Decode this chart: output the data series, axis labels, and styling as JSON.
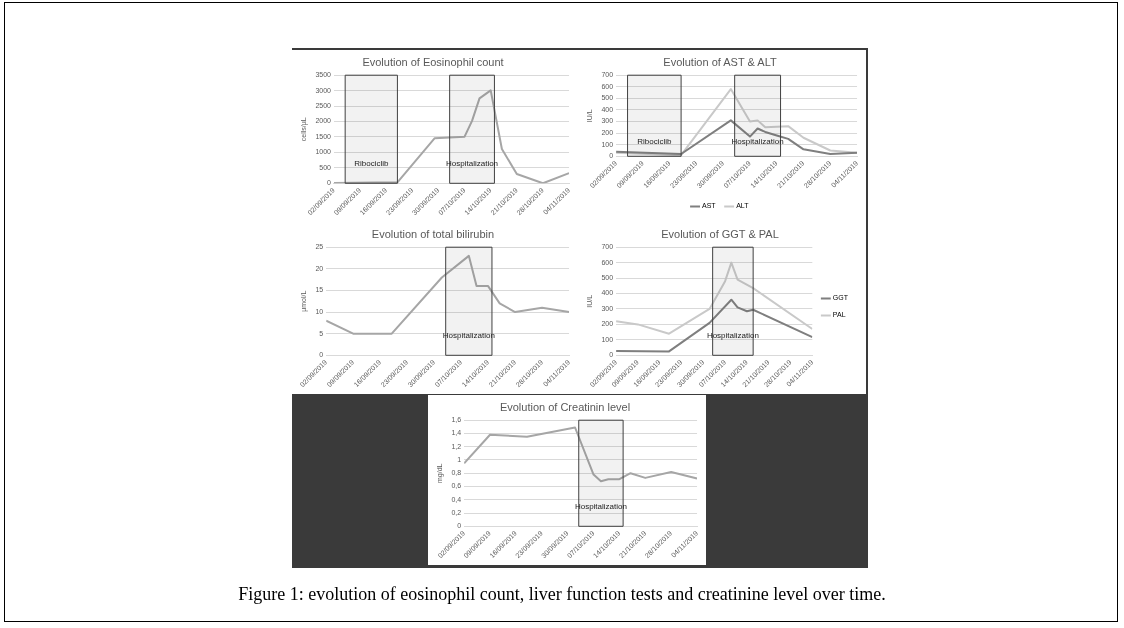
{
  "chart_data": [
    {
      "type": "line",
      "title": "Evolution of Eosinophil count",
      "ylabel": "cells/µL",
      "marker": "none",
      "grid": "y",
      "legend": false,
      "xlim": [
        "2019-09-02",
        "2019-11-04"
      ],
      "xticks": [
        {
          "value": "2019-09-02",
          "label": "02/09/2019"
        },
        {
          "value": "2019-09-09",
          "label": "09/09/2019"
        },
        {
          "value": "2019-09-16",
          "label": "16/09/2019"
        },
        {
          "value": "2019-09-23",
          "label": "23/09/2019"
        },
        {
          "value": "2019-09-30",
          "label": "30/09/2019"
        },
        {
          "value": "2019-10-07",
          "label": "07/10/2019"
        },
        {
          "value": "2019-10-14",
          "label": "14/10/2019"
        },
        {
          "value": "2019-10-21",
          "label": "21/10/2019"
        },
        {
          "value": "2019-10-28",
          "label": "28/10/2019"
        },
        {
          "value": "2019-11-04",
          "label": "04/11/2019"
        }
      ],
      "ylim": [
        0,
        3500
      ],
      "yticks": [
        0,
        500,
        1000,
        1500,
        2000,
        2500,
        3000,
        3500
      ],
      "bands": [
        {
          "axis": "x",
          "from": "2019-09-05",
          "to": "2019-09-19",
          "label": "Ribociclib",
          "color": "#404040"
        },
        {
          "axis": "x",
          "from": "2019-10-03",
          "to": "2019-10-15",
          "label": "Hospitalization",
          "color": "#404040"
        }
      ],
      "series": [
        {
          "color": "#a6a6a6",
          "x": [
            "2019-09-02",
            "2019-09-19",
            "2019-09-29",
            "2019-10-03",
            "2019-10-07",
            "2019-10-09",
            "2019-10-11",
            "2019-10-14",
            "2019-10-17",
            "2019-10-21",
            "2019-10-28",
            "2019-11-04"
          ],
          "values": [
            10,
            30,
            1460,
            1480,
            1510,
            2020,
            2750,
            3010,
            1110,
            300,
            0,
            330
          ]
        }
      ]
    },
    {
      "type": "line",
      "title": "Evolution of AST & ALT",
      "ylabel": "IU/L",
      "marker": "none",
      "grid": "y",
      "legend": "bottom",
      "xlim": [
        "2019-09-02",
        "2019-11-04"
      ],
      "xticks": [
        {
          "value": "2019-09-02",
          "label": "02/09/2019"
        },
        {
          "value": "2019-09-09",
          "label": "09/09/2019"
        },
        {
          "value": "2019-09-16",
          "label": "16/09/2019"
        },
        {
          "value": "2019-09-23",
          "label": "23/09/2019"
        },
        {
          "value": "2019-09-30",
          "label": "30/09/2019"
        },
        {
          "value": "2019-10-07",
          "label": "07/10/2019"
        },
        {
          "value": "2019-10-14",
          "label": "14/10/2019"
        },
        {
          "value": "2019-10-21",
          "label": "21/10/2019"
        },
        {
          "value": "2019-10-28",
          "label": "28/10/2019"
        },
        {
          "value": "2019-11-04",
          "label": "04/11/2019"
        }
      ],
      "ylim": [
        0,
        700
      ],
      "yticks": [
        0,
        100,
        200,
        300,
        400,
        500,
        600,
        700
      ],
      "bands": [
        {
          "axis": "x",
          "from": "2019-09-05",
          "to": "2019-09-19",
          "label": "Ribociclib",
          "color": "#404040"
        },
        {
          "axis": "x",
          "from": "2019-10-03",
          "to": "2019-10-15",
          "label": "Hospitalization",
          "color": "#404040"
        }
      ],
      "series": [
        {
          "name": "AST",
          "color": "#7f7f7f",
          "x": [
            "2019-09-02",
            "2019-09-19",
            "2019-10-02",
            "2019-10-07",
            "2019-10-09",
            "2019-10-11",
            "2019-10-14",
            "2019-10-17",
            "2019-10-21",
            "2019-10-28",
            "2019-11-04"
          ],
          "values": [
            40,
            20,
            310,
            170,
            240,
            210,
            180,
            150,
            60,
            20,
            30
          ]
        },
        {
          "name": "ALT",
          "color": "#c9c9c9",
          "x": [
            "2019-09-02",
            "2019-09-19",
            "2019-10-02",
            "2019-10-07",
            "2019-10-09",
            "2019-10-11",
            "2019-10-17",
            "2019-10-21",
            "2019-10-28",
            "2019-11-04"
          ],
          "values": [
            30,
            10,
            580,
            300,
            310,
            250,
            260,
            160,
            50,
            30
          ]
        }
      ]
    },
    {
      "type": "line",
      "title": "Evolution of total bilirubin",
      "ylabel": "µmol/L",
      "marker": "none",
      "grid": "y",
      "legend": false,
      "xlim": [
        "2019-09-02",
        "2019-11-04"
      ],
      "xticks": [
        {
          "value": "2019-09-02",
          "label": "02/09/2019"
        },
        {
          "value": "2019-09-09",
          "label": "09/09/2019"
        },
        {
          "value": "2019-09-16",
          "label": "16/09/2019"
        },
        {
          "value": "2019-09-23",
          "label": "23/09/2019"
        },
        {
          "value": "2019-09-30",
          "label": "30/09/2019"
        },
        {
          "value": "2019-10-07",
          "label": "07/10/2019"
        },
        {
          "value": "2019-10-14",
          "label": "14/10/2019"
        },
        {
          "value": "2019-10-21",
          "label": "21/10/2019"
        },
        {
          "value": "2019-10-28",
          "label": "28/10/2019"
        },
        {
          "value": "2019-11-04",
          "label": "04/11/2019"
        }
      ],
      "ylim": [
        0,
        25
      ],
      "yticks": [
        0,
        5,
        10,
        15,
        20,
        25
      ],
      "bands": [
        {
          "axis": "x",
          "from": "2019-10-03",
          "to": "2019-10-15",
          "label": "Hospitalization",
          "color": "#404040"
        }
      ],
      "series": [
        {
          "color": "#a6a6a6",
          "x": [
            "2019-09-02",
            "2019-09-09",
            "2019-09-19",
            "2019-10-02",
            "2019-10-09",
            "2019-10-11",
            "2019-10-14",
            "2019-10-17",
            "2019-10-21",
            "2019-10-28",
            "2019-11-04"
          ],
          "values": [
            8,
            5,
            5,
            18,
            23,
            16,
            16,
            12,
            10,
            11,
            10
          ]
        }
      ]
    },
    {
      "type": "line",
      "title": "Evolution of GGT & PAL",
      "ylabel": "IU/L",
      "marker": "none",
      "grid": "y",
      "legend": "right",
      "xlim": [
        "2019-09-02",
        "2019-11-04"
      ],
      "xticks": [
        {
          "value": "2019-09-02",
          "label": "02/09/2019"
        },
        {
          "value": "2019-09-09",
          "label": "09/09/2019"
        },
        {
          "value": "2019-09-16",
          "label": "16/09/2019"
        },
        {
          "value": "2019-09-23",
          "label": "23/09/2019"
        },
        {
          "value": "2019-09-30",
          "label": "30/09/2019"
        },
        {
          "value": "2019-10-07",
          "label": "07/10/2019"
        },
        {
          "value": "2019-10-14",
          "label": "14/10/2019"
        },
        {
          "value": "2019-10-21",
          "label": "21/10/2019"
        },
        {
          "value": "2019-10-28",
          "label": "28/10/2019"
        },
        {
          "value": "2019-11-04",
          "label": "04/11/2019"
        }
      ],
      "ylim": [
        0,
        700
      ],
      "yticks": [
        0,
        100,
        200,
        300,
        400,
        500,
        600,
        700
      ],
      "bands": [
        {
          "axis": "x",
          "from": "2019-10-03",
          "to": "2019-10-16",
          "label": "Hospitalization",
          "color": "#404040"
        }
      ],
      "series": [
        {
          "name": "GGT",
          "color": "#7f7f7f",
          "x": [
            "2019-09-02",
            "2019-09-19",
            "2019-10-02",
            "2019-10-09",
            "2019-10-11",
            "2019-10-14",
            "2019-10-16",
            "2019-11-04"
          ],
          "values": [
            28,
            25,
            210,
            360,
            310,
            285,
            295,
            118
          ]
        },
        {
          "name": "PAL",
          "color": "#c9c9c9",
          "x": [
            "2019-09-02",
            "2019-09-09",
            "2019-09-19",
            "2019-10-02",
            "2019-10-07",
            "2019-10-09",
            "2019-10-11",
            "2019-10-16",
            "2019-11-04"
          ],
          "values": [
            220,
            200,
            140,
            300,
            480,
            600,
            490,
            435,
            170
          ]
        }
      ]
    },
    {
      "type": "line",
      "title": "Evolution of Creatinin level",
      "ylabel": "mg/dL",
      "marker": "none",
      "grid": "y",
      "legend": false,
      "xlim": [
        "2019-09-02",
        "2019-11-04"
      ],
      "xticks": [
        {
          "value": "2019-09-02",
          "label": "02/09/2019"
        },
        {
          "value": "2019-09-09",
          "label": "09/09/2019"
        },
        {
          "value": "2019-09-16",
          "label": "16/09/2019"
        },
        {
          "value": "2019-09-23",
          "label": "23/09/2019"
        },
        {
          "value": "2019-09-30",
          "label": "30/09/2019"
        },
        {
          "value": "2019-10-07",
          "label": "07/10/2019"
        },
        {
          "value": "2019-10-14",
          "label": "14/10/2019"
        },
        {
          "value": "2019-10-21",
          "label": "21/10/2019"
        },
        {
          "value": "2019-10-28",
          "label": "28/10/2019"
        },
        {
          "value": "2019-11-04",
          "label": "04/11/2019"
        }
      ],
      "ylim": [
        0,
        1.6
      ],
      "yticks": [
        0,
        {
          "value": 0.2,
          "label": "0,2"
        },
        {
          "value": 0.4,
          "label": "0,4"
        },
        {
          "value": 0.6,
          "label": "0,6"
        },
        {
          "value": 0.8,
          "label": "0,8"
        },
        1,
        {
          "value": 1.2,
          "label": "1,2"
        },
        {
          "value": 1.4,
          "label": "1,4"
        },
        {
          "value": 1.6,
          "label": "1,6"
        }
      ],
      "bands": [
        {
          "axis": "x",
          "from": "2019-10-03",
          "to": "2019-10-15",
          "label": "Hospitalization",
          "color": "#404040"
        }
      ],
      "annotations": [
        "Figure 1: evolution of eosinophil count, liver function tests and creatinine level over time."
      ],
      "series": [
        {
          "color": "#a6a6a6",
          "x": [
            "2019-09-02",
            "2019-09-09",
            "2019-09-19",
            "2019-10-02",
            "2019-10-07",
            "2019-10-09",
            "2019-10-11",
            "2019-10-14",
            "2019-10-17",
            "2019-10-21",
            "2019-10-28",
            "2019-11-04"
          ],
          "values": [
            0.95,
            1.38,
            1.35,
            1.49,
            0.78,
            0.68,
            0.71,
            0.71,
            0.8,
            0.73,
            0.82,
            0.72
          ]
        }
      ]
    }
  ]
}
